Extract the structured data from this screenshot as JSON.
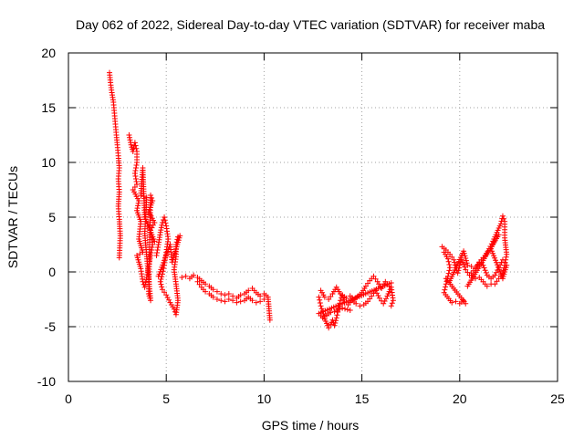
{
  "chart_data": {
    "type": "scatter",
    "title": "Day 062 of 2022, Sidereal Day-to-day VTEC variation (SDTVAR) for receiver maba",
    "xlabel": "GPS time / hours",
    "ylabel": "SDTVAR / TECUs",
    "xlim": [
      0,
      25
    ],
    "ylim": [
      -10,
      20
    ],
    "xticks": [
      0,
      5,
      10,
      15,
      20,
      25
    ],
    "yticks": [
      -10,
      -5,
      0,
      5,
      10,
      15,
      20
    ],
    "grid": true,
    "marker": "+",
    "series": [
      {
        "name": "SDTVAR",
        "color": "#ff0000",
        "segments": [
          [
            [
              2.1,
              18.2
            ],
            [
              2.15,
              17.3
            ],
            [
              2.2,
              16.6
            ],
            [
              2.3,
              15.5
            ],
            [
              2.35,
              14.5
            ],
            [
              2.4,
              13.5
            ],
            [
              2.45,
              12.5
            ],
            [
              2.5,
              11.6
            ],
            [
              2.55,
              10.6
            ],
            [
              2.6,
              9.5
            ],
            [
              2.55,
              8.5
            ],
            [
              2.6,
              7.3
            ],
            [
              2.55,
              6.0
            ],
            [
              2.6,
              4.8
            ],
            [
              2.65,
              3.3
            ],
            [
              2.6,
              1.3
            ]
          ],
          [
            [
              3.1,
              12.5
            ],
            [
              3.2,
              11.6
            ],
            [
              3.3,
              11.0
            ],
            [
              3.4,
              11.8
            ],
            [
              3.5,
              11.0
            ],
            [
              3.5,
              10.0
            ],
            [
              3.4,
              9.0
            ],
            [
              3.5,
              8.0
            ],
            [
              3.3,
              7.5
            ],
            [
              3.6,
              6.5
            ],
            [
              3.5,
              5.6
            ],
            [
              3.7,
              4.6
            ],
            [
              3.6,
              3.0
            ],
            [
              3.8,
              1.8
            ],
            [
              3.5,
              1.5
            ],
            [
              3.7,
              0.3
            ],
            [
              3.8,
              -0.9
            ],
            [
              3.9,
              -1.4
            ],
            [
              4.0,
              -0.5
            ],
            [
              4.1,
              0.5
            ],
            [
              4.2,
              1.5
            ],
            [
              4.3,
              2.5
            ],
            [
              4.2,
              3.8
            ],
            [
              4.4,
              4.5
            ],
            [
              4.1,
              5.5
            ],
            [
              4.3,
              6.5
            ],
            [
              4.2,
              7.0
            ],
            [
              4.1,
              -2.0
            ],
            [
              4.2,
              -2.6
            ],
            [
              3.9,
              3.5
            ],
            [
              4.0,
              6.8
            ],
            [
              3.7,
              7.0
            ],
            [
              3.8,
              9.5
            ],
            [
              3.9,
              5.0
            ],
            [
              4.4,
              2.8
            ]
          ],
          [
            [
              4.5,
              1.5
            ],
            [
              4.6,
              2.5
            ],
            [
              4.7,
              3.6
            ],
            [
              4.8,
              4.5
            ],
            [
              4.9,
              5.0
            ],
            [
              5.0,
              4.2
            ],
            [
              5.1,
              3.0
            ],
            [
              5.0,
              1.8
            ],
            [
              4.9,
              0.6
            ],
            [
              4.8,
              -0.2
            ],
            [
              4.7,
              -0.9
            ],
            [
              4.8,
              -1.6
            ],
            [
              5.0,
              -2.1
            ],
            [
              5.2,
              -2.8
            ],
            [
              5.4,
              -3.4
            ],
            [
              5.5,
              -3.9
            ],
            [
              5.6,
              -2.6
            ],
            [
              5.5,
              -1.1
            ],
            [
              5.4,
              0.2
            ],
            [
              5.5,
              1.4
            ],
            [
              5.5,
              2.5
            ],
            [
              5.6,
              3.2
            ],
            [
              5.7,
              3.3
            ],
            [
              5.3,
              0.9
            ],
            [
              5.2,
              2.5
            ],
            [
              4.6,
              -0.4
            ]
          ],
          [
            [
              5.8,
              -0.5
            ],
            [
              6.0,
              -0.4
            ],
            [
              6.2,
              -0.6
            ],
            [
              6.4,
              -0.3
            ],
            [
              6.6,
              -0.5
            ],
            [
              6.8,
              -0.8
            ],
            [
              7.0,
              -1.1
            ],
            [
              7.2,
              -1.3
            ],
            [
              7.4,
              -1.6
            ],
            [
              7.6,
              -1.8
            ],
            [
              7.8,
              -2.0
            ],
            [
              8.0,
              -2.1
            ],
            [
              8.2,
              -2.0
            ],
            [
              8.4,
              -2.2
            ],
            [
              8.6,
              -2.4
            ],
            [
              8.8,
              -2.1
            ],
            [
              9.0,
              -2.0
            ],
            [
              9.2,
              -1.7
            ],
            [
              9.4,
              -1.5
            ],
            [
              9.6,
              -1.9
            ],
            [
              9.8,
              -2.2
            ],
            [
              10.0,
              -2.0
            ],
            [
              10.2,
              -2.3
            ],
            [
              10.3,
              -4.4
            ]
          ],
          [
            [
              6.6,
              -0.9
            ],
            [
              6.8,
              -1.4
            ],
            [
              7.0,
              -1.8
            ],
            [
              7.2,
              -2.0
            ],
            [
              7.4,
              -2.3
            ],
            [
              7.6,
              -2.5
            ],
            [
              7.8,
              -2.6
            ],
            [
              8.0,
              -2.7
            ],
            [
              8.2,
              -2.5
            ],
            [
              8.4,
              -2.6
            ],
            [
              8.6,
              -2.8
            ],
            [
              8.8,
              -2.7
            ],
            [
              9.0,
              -2.6
            ],
            [
              9.2,
              -2.3
            ],
            [
              9.4,
              -2.6
            ],
            [
              9.6,
              -2.8
            ],
            [
              9.8,
              -2.7
            ],
            [
              10.0,
              -2.5
            ]
          ],
          [
            [
              12.8,
              -2.3
            ],
            [
              12.9,
              -3.1
            ],
            [
              13.0,
              -3.6
            ],
            [
              13.1,
              -4.3
            ],
            [
              13.2,
              -4.7
            ],
            [
              13.3,
              -5.1
            ],
            [
              13.4,
              -4.8
            ],
            [
              13.5,
              -4.4
            ],
            [
              13.6,
              -4.9
            ],
            [
              13.7,
              -4.2
            ],
            [
              13.8,
              -3.4
            ],
            [
              13.9,
              -2.6
            ],
            [
              14.0,
              -2.1
            ],
            [
              14.1,
              -2.8
            ],
            [
              14.3,
              -3.0
            ],
            [
              14.5,
              -2.6
            ],
            [
              14.7,
              -2.9
            ],
            [
              14.9,
              -3.1
            ],
            [
              15.1,
              -3.0
            ],
            [
              15.3,
              -2.7
            ],
            [
              15.5,
              -2.2
            ],
            [
              15.7,
              -1.7
            ],
            [
              15.9,
              -2.4
            ],
            [
              16.1,
              -2.9
            ],
            [
              16.3,
              -2.2
            ],
            [
              16.5,
              -1.4
            ],
            [
              16.6,
              -2.6
            ],
            [
              16.5,
              -3.1
            ]
          ],
          [
            [
              12.9,
              -1.7
            ],
            [
              13.1,
              -2.3
            ],
            [
              13.3,
              -2.5
            ],
            [
              13.5,
              -2.0
            ],
            [
              13.7,
              -1.4
            ],
            [
              13.9,
              -2.0
            ],
            [
              14.2,
              -2.4
            ],
            [
              14.4,
              -2.2
            ],
            [
              14.6,
              -2.5
            ],
            [
              14.8,
              -2.2
            ],
            [
              15.0,
              -1.9
            ],
            [
              15.2,
              -1.3
            ],
            [
              15.4,
              -0.8
            ],
            [
              15.6,
              -0.4
            ],
            [
              15.8,
              -0.9
            ],
            [
              16.0,
              -1.5
            ],
            [
              16.2,
              -0.9
            ],
            [
              16.4,
              -1.3
            ],
            [
              16.5,
              -1.0
            ],
            [
              12.8,
              -3.8
            ],
            [
              13.0,
              -4.2
            ],
            [
              13.4,
              -3.7
            ],
            [
              13.6,
              -3.6
            ],
            [
              14.0,
              -3.3
            ],
            [
              14.4,
              -3.5
            ]
          ],
          [
            [
              19.1,
              2.3
            ],
            [
              19.3,
              2.0
            ],
            [
              19.5,
              1.6
            ],
            [
              19.7,
              1.1
            ],
            [
              19.8,
              0.4
            ],
            [
              19.9,
              -0.1
            ],
            [
              20.0,
              0.6
            ],
            [
              20.1,
              1.1
            ],
            [
              20.2,
              0.7
            ],
            [
              20.3,
              0.2
            ],
            [
              20.5,
              -0.3
            ],
            [
              20.7,
              0.1
            ],
            [
              20.9,
              0.6
            ],
            [
              21.1,
              1.1
            ],
            [
              21.3,
              1.5
            ],
            [
              21.5,
              2.1
            ],
            [
              21.7,
              2.8
            ],
            [
              21.9,
              3.6
            ],
            [
              22.1,
              4.4
            ],
            [
              22.2,
              5.1
            ],
            [
              22.3,
              4.6
            ],
            [
              22.3,
              3.6
            ],
            [
              22.3,
              3.1
            ],
            [
              22.4,
              1.6
            ],
            [
              22.3,
              0.6
            ],
            [
              22.2,
              -0.1
            ],
            [
              22.0,
              -0.6
            ],
            [
              21.8,
              -1.1
            ],
            [
              21.6,
              -1.1
            ],
            [
              21.4,
              -1.3
            ],
            [
              21.2,
              -0.9
            ],
            [
              21.0,
              -0.5
            ],
            [
              20.8,
              -0.6
            ],
            [
              20.6,
              -0.3
            ]
          ],
          [
            [
              19.2,
              1.8
            ],
            [
              19.4,
              1.2
            ],
            [
              19.5,
              0.4
            ],
            [
              19.4,
              -0.4
            ],
            [
              19.3,
              -1.1
            ],
            [
              19.2,
              -1.9
            ],
            [
              19.6,
              -2.8
            ],
            [
              19.8,
              -2.7
            ],
            [
              20.0,
              -2.9
            ],
            [
              20.2,
              -2.6
            ],
            [
              20.3,
              -2.9
            ],
            [
              19.3,
              -0.6
            ],
            [
              19.5,
              -0.8
            ],
            [
              20.2,
              1.9
            ],
            [
              20.4,
              0.6
            ],
            [
              20.6,
              0.5
            ],
            [
              20.8,
              0.3
            ],
            [
              21.0,
              0.9
            ],
            [
              21.2,
              0.6
            ],
            [
              21.4,
              -0.3
            ],
            [
              21.6,
              -0.6
            ],
            [
              21.8,
              -0.3
            ],
            [
              22.0,
              0.4
            ],
            [
              22.2,
              1.1
            ],
            [
              22.4,
              0.6
            ],
            [
              22.2,
              -0.6
            ],
            [
              21.6,
              2.1
            ],
            [
              21.8,
              3.0
            ],
            [
              22.0,
              3.4
            ],
            [
              20.4,
              -1.3
            ]
          ]
        ]
      }
    ]
  }
}
